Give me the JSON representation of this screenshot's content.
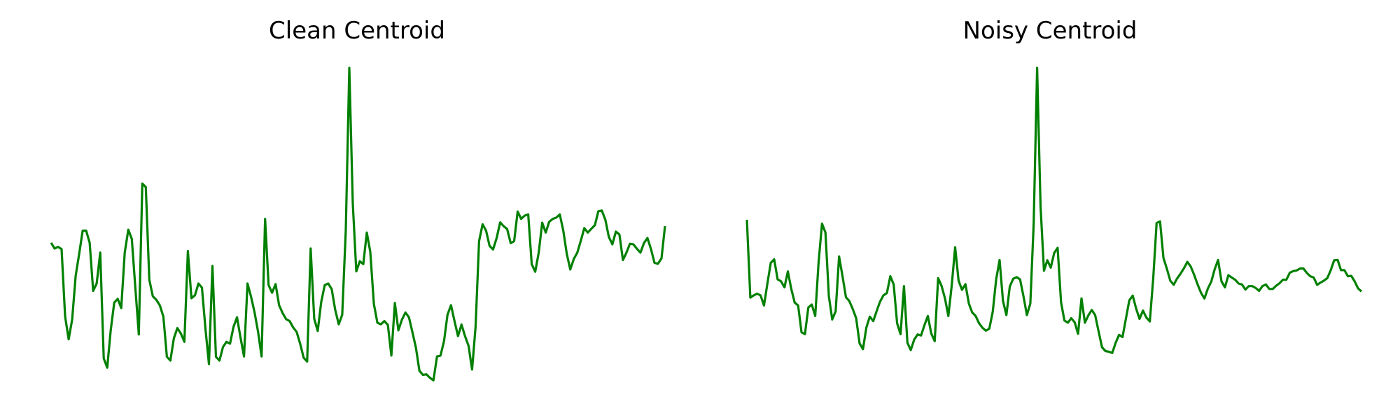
{
  "line_color": "#008000",
  "chart_data": [
    {
      "type": "line",
      "title": "Clean Centroid",
      "axes_visible": false,
      "grid": false,
      "ylim": [
        0,
        1
      ],
      "series": [
        {
          "values": [
            0.451,
            0.433,
            0.438,
            0.431,
            0.22,
            0.148,
            0.21,
            0.347,
            0.416,
            0.489,
            0.489,
            0.451,
            0.3,
            0.323,
            0.42,
            0.088,
            0.059,
            0.177,
            0.263,
            0.275,
            0.246,
            0.42,
            0.492,
            0.463,
            0.311,
            0.163,
            0.637,
            0.626,
            0.335,
            0.283,
            0.272,
            0.254,
            0.219,
            0.093,
            0.081,
            0.151,
            0.183,
            0.166,
            0.14,
            0.425,
            0.277,
            0.286,
            0.323,
            0.31,
            0.181,
            0.07,
            0.378,
            0.093,
            0.081,
            0.124,
            0.14,
            0.134,
            0.187,
            0.217,
            0.153,
            0.094,
            0.323,
            0.281,
            0.232,
            0.171,
            0.094,
            0.526,
            0.318,
            0.294,
            0.321,
            0.255,
            0.23,
            0.211,
            0.205,
            0.185,
            0.171,
            0.134,
            0.09,
            0.078,
            0.433,
            0.212,
            0.174,
            0.265,
            0.318,
            0.323,
            0.305,
            0.24,
            0.195,
            0.225,
            0.491,
            1.0,
            0.574,
            0.361,
            0.393,
            0.384,
            0.483,
            0.422,
            0.259,
            0.2,
            0.195,
            0.205,
            0.193,
            0.097,
            0.262,
            0.176,
            0.209,
            0.232,
            0.217,
            0.17,
            0.121,
            0.049,
            0.036,
            0.038,
            0.027,
            0.019,
            0.094,
            0.097,
            0.142,
            0.225,
            0.255,
            0.205,
            0.158,
            0.194,
            0.158,
            0.127,
            0.053,
            0.187,
            0.456,
            0.509,
            0.489,
            0.441,
            0.43,
            0.466,
            0.515,
            0.503,
            0.494,
            0.45,
            0.456,
            0.549,
            0.526,
            0.536,
            0.54,
            0.384,
            0.36,
            0.42,
            0.514,
            0.483,
            0.517,
            0.526,
            0.53,
            0.54,
            0.489,
            0.416,
            0.367,
            0.4,
            0.42,
            0.457,
            0.497,
            0.483,
            0.495,
            0.506,
            0.55,
            0.552,
            0.523,
            0.469,
            0.446,
            0.486,
            0.477,
            0.397,
            0.42,
            0.448,
            0.446,
            0.432,
            0.42,
            0.45,
            0.466,
            0.431,
            0.388,
            0.385,
            0.402,
            0.503
          ]
        }
      ]
    },
    {
      "type": "line",
      "title": "Noisy Centroid",
      "axes_visible": false,
      "grid": false,
      "ylim": [
        0,
        1
      ],
      "series": [
        {
          "values": [
            0.523,
            0.279,
            0.286,
            0.291,
            0.286,
            0.254,
            0.323,
            0.388,
            0.399,
            0.336,
            0.33,
            0.311,
            0.361,
            0.306,
            0.263,
            0.254,
            0.17,
            0.164,
            0.248,
            0.257,
            0.221,
            0.389,
            0.511,
            0.483,
            0.283,
            0.21,
            0.236,
            0.408,
            0.346,
            0.28,
            0.268,
            0.243,
            0.214,
            0.135,
            0.117,
            0.185,
            0.219,
            0.205,
            0.237,
            0.266,
            0.286,
            0.293,
            0.346,
            0.32,
            0.198,
            0.164,
            0.315,
            0.137,
            0.114,
            0.147,
            0.163,
            0.16,
            0.192,
            0.221,
            0.166,
            0.142,
            0.34,
            0.316,
            0.277,
            0.221,
            0.319,
            0.437,
            0.332,
            0.303,
            0.321,
            0.26,
            0.232,
            0.221,
            0.198,
            0.184,
            0.175,
            0.181,
            0.234,
            0.336,
            0.397,
            0.269,
            0.224,
            0.314,
            0.338,
            0.343,
            0.336,
            0.283,
            0.224,
            0.26,
            0.511,
            1.0,
            0.566,
            0.363,
            0.396,
            0.373,
            0.419,
            0.435,
            0.264,
            0.207,
            0.2,
            0.214,
            0.201,
            0.165,
            0.276,
            0.2,
            0.223,
            0.24,
            0.224,
            0.173,
            0.123,
            0.111,
            0.109,
            0.105,
            0.137,
            0.162,
            0.155,
            0.212,
            0.27,
            0.285,
            0.244,
            0.212,
            0.238,
            0.216,
            0.204,
            0.34,
            0.513,
            0.518,
            0.403,
            0.369,
            0.332,
            0.319,
            0.339,
            0.354,
            0.371,
            0.391,
            0.376,
            0.35,
            0.32,
            0.294,
            0.276,
            0.307,
            0.329,
            0.368,
            0.397,
            0.33,
            0.311,
            0.349,
            0.342,
            0.335,
            0.323,
            0.32,
            0.304,
            0.315,
            0.315,
            0.309,
            0.3,
            0.315,
            0.32,
            0.306,
            0.306,
            0.316,
            0.324,
            0.335,
            0.335,
            0.357,
            0.362,
            0.364,
            0.37,
            0.37,
            0.356,
            0.346,
            0.342,
            0.319,
            0.326,
            0.332,
            0.34,
            0.365,
            0.396,
            0.397,
            0.365,
            0.365,
            0.346,
            0.347,
            0.33,
            0.308,
            0.298
          ]
        }
      ]
    }
  ]
}
